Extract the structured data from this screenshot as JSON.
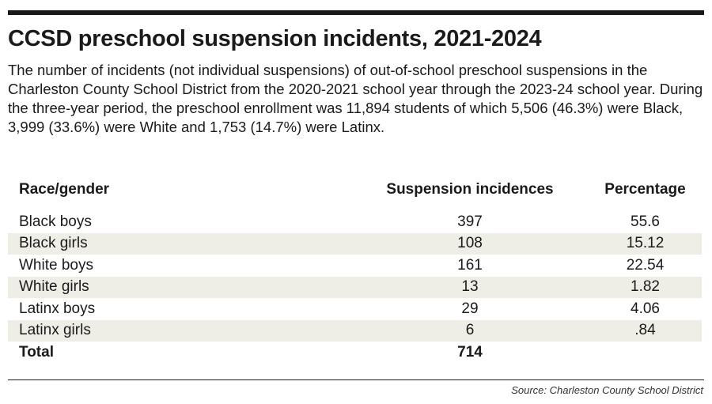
{
  "chart_data": {
    "type": "table",
    "title": "CCSD preschool suspension incidents, 2021-2024",
    "subtitle": "The number of incidents (not individual suspensions) of out-of-school preschool suspensions in the Charleston County School District from the 2020-2021 school year through the 2023-24 school year. During the three-year period, the preschool enrollment was 11,894 students of which 5,506 (46.3%) were Black, 3,999 (33.6%) were White and 1,753 (14.7%) were Latinx.",
    "columns": [
      "Race/gender",
      "Suspension incidences",
      "Percentage"
    ],
    "rows": [
      {
        "group": "Black boys",
        "incidences": "397",
        "percentage": "55.6"
      },
      {
        "group": "Black girls",
        "incidences": "108",
        "percentage": "15.12"
      },
      {
        "group": "White boys",
        "incidences": "161",
        "percentage": "22.54"
      },
      {
        "group": "White girls",
        "incidences": "13",
        "percentage": "1.82"
      },
      {
        "group": "Latinx boys",
        "incidences": "29",
        "percentage": "4.06"
      },
      {
        "group": "Latinx girls",
        "incidences": "6",
        "percentage": ".84"
      }
    ],
    "total": {
      "label": "Total",
      "incidences": "714"
    },
    "source": "Source: Charleston County School District"
  },
  "colors": {
    "rule": "#1a1a1a",
    "row_shade": "#eeeee7",
    "text": "#1a1a1a"
  }
}
